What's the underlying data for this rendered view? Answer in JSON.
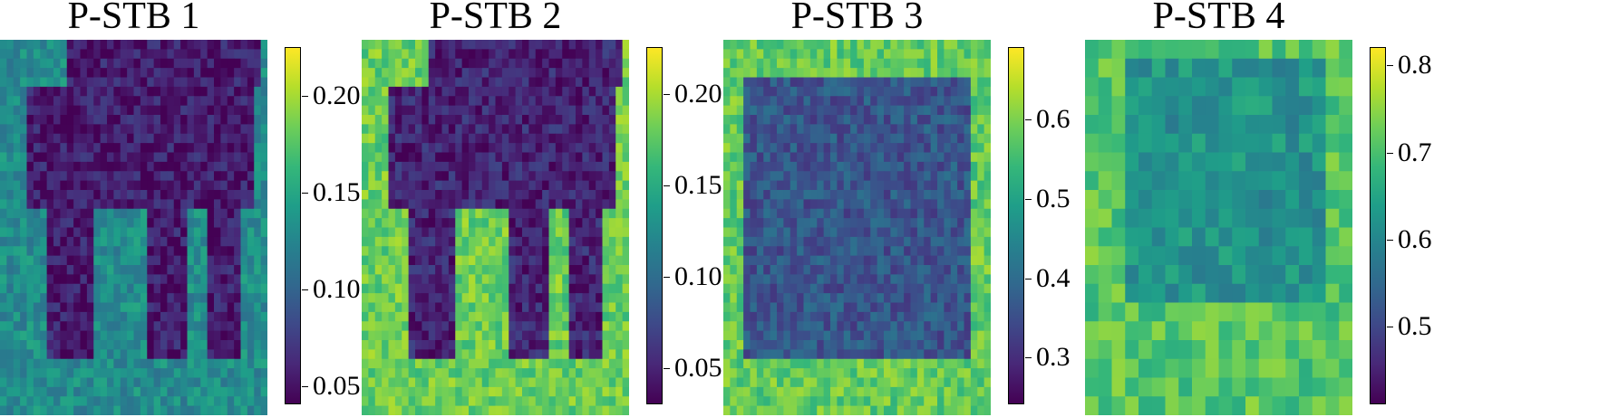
{
  "chart_data": [
    {
      "type": "heatmap",
      "title": "P-STB 1",
      "colormap": "viridis",
      "colorbar": {
        "min": 0.04,
        "max": 0.225,
        "ticks": [
          0.05,
          0.1,
          0.15,
          0.2
        ],
        "tick_labels": [
          "0.05",
          "0.10",
          "0.15",
          "0.20"
        ]
      },
      "background_value": 0.13,
      "foreground_value": 0.055,
      "grid": 40
    },
    {
      "type": "heatmap",
      "title": "P-STB 2",
      "colormap": "viridis",
      "colorbar": {
        "min": 0.03,
        "max": 0.225,
        "ticks": [
          0.05,
          0.1,
          0.15,
          0.2
        ],
        "tick_labels": [
          "0.05",
          "0.10",
          "0.15",
          "0.20"
        ]
      },
      "background_value": 0.18,
      "foreground_value": 0.05,
      "grid": 40
    },
    {
      "type": "heatmap",
      "title": "P-STB 3",
      "colormap": "viridis",
      "colorbar": {
        "min": 0.24,
        "max": 0.69,
        "ticks": [
          0.3,
          0.4,
          0.5,
          0.6
        ],
        "tick_labels": [
          "0.3",
          "0.4",
          "0.5",
          "0.6"
        ]
      },
      "background_value": 0.58,
      "foreground_value": 0.36,
      "grid": 40
    },
    {
      "type": "heatmap",
      "title": "P-STB 4",
      "colormap": "viridis",
      "colorbar": {
        "min": 0.41,
        "max": 0.82,
        "ticks": [
          0.5,
          0.6,
          0.7,
          0.8
        ],
        "tick_labels": [
          "0.5",
          "0.6",
          "0.7",
          "0.8"
        ]
      },
      "background_value": 0.71,
      "foreground_value": 0.62,
      "grid": 20
    }
  ]
}
